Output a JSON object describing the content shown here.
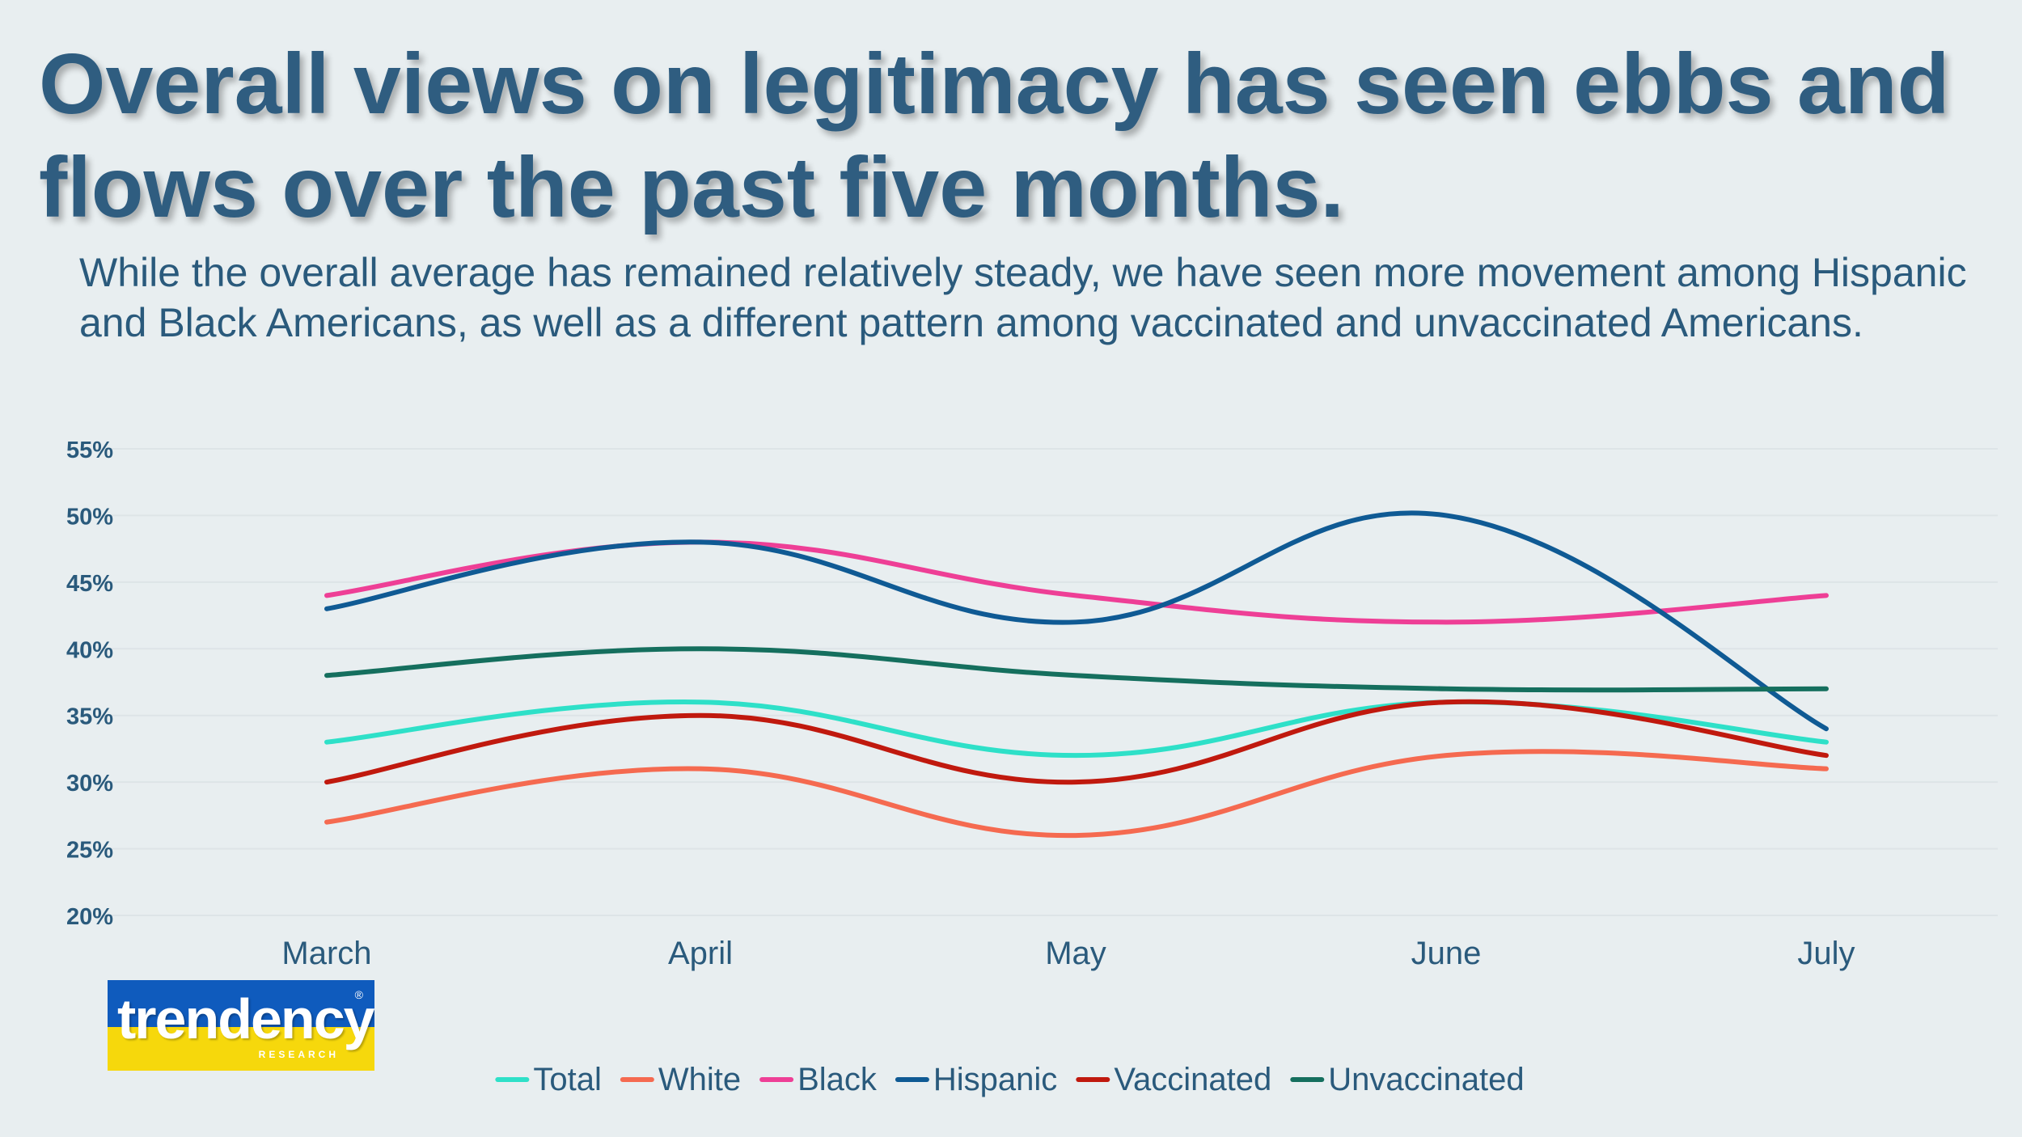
{
  "slide": {
    "title": "Overall views on legitimacy has seen ebbs and flows over the past five months.",
    "subtitle": "While the overall average has remained relatively steady, we have seen more movement among Hispanic and Black Americans, as well as a different pattern among vaccinated and unvaccinated Americans."
  },
  "logo": {
    "name": "trendency",
    "tagline": "RESEARCH",
    "mark": "®"
  },
  "chart_data": {
    "type": "line",
    "title": "",
    "xlabel": "",
    "ylabel": "",
    "categories": [
      "March",
      "April",
      "May",
      "June",
      "July"
    ],
    "ylim": [
      0.2,
      0.55
    ],
    "yticks": [
      "55%",
      "50%",
      "45%",
      "40%",
      "35%",
      "30%",
      "25%",
      "20%"
    ],
    "ytick_values": [
      0.55,
      0.5,
      0.45,
      0.4,
      0.35,
      0.3,
      0.25,
      0.2
    ],
    "grid": true,
    "smooth": true,
    "legend_position": "bottom",
    "series": [
      {
        "name": "Total",
        "color": "#2ee0c8",
        "values": [
          0.33,
          0.36,
          0.32,
          0.36,
          0.33
        ]
      },
      {
        "name": "White",
        "color": "#f56a50",
        "values": [
          0.27,
          0.31,
          0.26,
          0.32,
          0.31
        ]
      },
      {
        "name": "Black",
        "color": "#ee3f96",
        "values": [
          0.44,
          0.48,
          0.44,
          0.42,
          0.44
        ]
      },
      {
        "name": "Hispanic",
        "color": "#0f5a94",
        "values": [
          0.43,
          0.48,
          0.42,
          0.5,
          0.34
        ]
      },
      {
        "name": "Vaccinated",
        "color": "#c0190e",
        "values": [
          0.3,
          0.35,
          0.3,
          0.36,
          0.32
        ]
      },
      {
        "name": "Unvaccinated",
        "color": "#156f5e",
        "values": [
          0.38,
          0.4,
          0.38,
          0.37,
          0.37
        ]
      }
    ]
  }
}
